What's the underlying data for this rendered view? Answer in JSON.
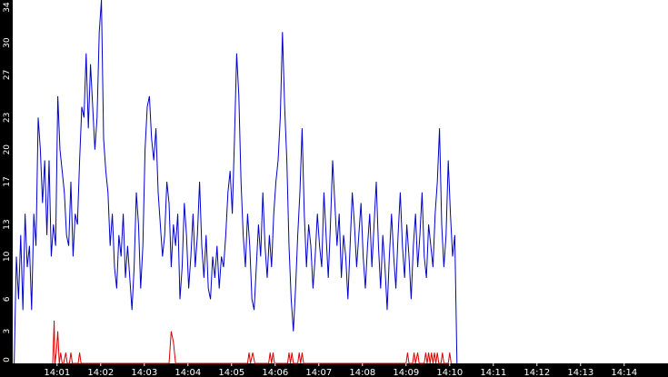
{
  "colors": {
    "background": "#ffffff",
    "axis_background": "#000000",
    "axis_text": "#ffffff",
    "series_blue": "#0000cc",
    "series_red": "#dd0000"
  },
  "chart_data": {
    "type": "line",
    "title": "",
    "xlabel": "",
    "ylabel": "",
    "grid": false,
    "legend": "none",
    "x_unit": "seconds",
    "x_range": [
      0,
      847
    ],
    "ylim": [
      0,
      34
    ],
    "y_ticks": [
      0,
      3,
      6,
      10,
      13,
      17,
      20,
      23,
      27,
      30,
      34
    ],
    "x_ticks": [
      {
        "label": "14:01",
        "t": 61
      },
      {
        "label": "14:02",
        "t": 121
      },
      {
        "label": "14:03",
        "t": 181
      },
      {
        "label": "14:04",
        "t": 241
      },
      {
        "label": "14:05",
        "t": 301
      },
      {
        "label": "14:06",
        "t": 361
      },
      {
        "label": "14:07",
        "t": 421
      },
      {
        "label": "14:08",
        "t": 481
      },
      {
        "label": "14:09",
        "t": 541
      },
      {
        "label": "14:10",
        "t": 601
      },
      {
        "label": "14:11",
        "t": 661
      },
      {
        "label": "14:12",
        "t": 721
      },
      {
        "label": "14:13",
        "t": 781
      },
      {
        "label": "14:14",
        "t": 841
      }
    ],
    "series": [
      {
        "color": "#0000cc",
        "points": [
          [
            2,
            0
          ],
          [
            5,
            10
          ],
          [
            8,
            6
          ],
          [
            11,
            12
          ],
          [
            14,
            5
          ],
          [
            17,
            14
          ],
          [
            20,
            9
          ],
          [
            23,
            11
          ],
          [
            26,
            5
          ],
          [
            29,
            14
          ],
          [
            32,
            11
          ],
          [
            35,
            23
          ],
          [
            38,
            20
          ],
          [
            41,
            15
          ],
          [
            44,
            19
          ],
          [
            47,
            12
          ],
          [
            50,
            19
          ],
          [
            53,
            10
          ],
          [
            56,
            13
          ],
          [
            59,
            11
          ],
          [
            62,
            25
          ],
          [
            65,
            20
          ],
          [
            68,
            18
          ],
          [
            71,
            16
          ],
          [
            74,
            12
          ],
          [
            77,
            11
          ],
          [
            80,
            17
          ],
          [
            83,
            10
          ],
          [
            86,
            14
          ],
          [
            89,
            13
          ],
          [
            92,
            19
          ],
          [
            95,
            24
          ],
          [
            98,
            23
          ],
          [
            101,
            29
          ],
          [
            104,
            22
          ],
          [
            107,
            28
          ],
          [
            110,
            24
          ],
          [
            113,
            20
          ],
          [
            116,
            23
          ],
          [
            119,
            31
          ],
          [
            122,
            34
          ],
          [
            125,
            21
          ],
          [
            128,
            18
          ],
          [
            131,
            16
          ],
          [
            134,
            11
          ],
          [
            137,
            14
          ],
          [
            140,
            9
          ],
          [
            143,
            7
          ],
          [
            146,
            12
          ],
          [
            149,
            10
          ],
          [
            152,
            14
          ],
          [
            155,
            8
          ],
          [
            158,
            11
          ],
          [
            161,
            8
          ],
          [
            164,
            5
          ],
          [
            167,
            9
          ],
          [
            170,
            16
          ],
          [
            173,
            13
          ],
          [
            176,
            7
          ],
          [
            179,
            11
          ],
          [
            182,
            20
          ],
          [
            185,
            24
          ],
          [
            188,
            25
          ],
          [
            191,
            21
          ],
          [
            194,
            19
          ],
          [
            197,
            22
          ],
          [
            200,
            16
          ],
          [
            203,
            13
          ],
          [
            206,
            10
          ],
          [
            209,
            12
          ],
          [
            212,
            17
          ],
          [
            215,
            15
          ],
          [
            218,
            9
          ],
          [
            221,
            13
          ],
          [
            224,
            11
          ],
          [
            227,
            14
          ],
          [
            230,
            6
          ],
          [
            233,
            9
          ],
          [
            236,
            15
          ],
          [
            239,
            12
          ],
          [
            242,
            7
          ],
          [
            245,
            10
          ],
          [
            248,
            14
          ],
          [
            251,
            9
          ],
          [
            254,
            12
          ],
          [
            257,
            17
          ],
          [
            260,
            11
          ],
          [
            263,
            8
          ],
          [
            266,
            12
          ],
          [
            269,
            7
          ],
          [
            272,
            6
          ],
          [
            275,
            10
          ],
          [
            278,
            8
          ],
          [
            281,
            11
          ],
          [
            284,
            7
          ],
          [
            287,
            10
          ],
          [
            290,
            9
          ],
          [
            293,
            12
          ],
          [
            296,
            16
          ],
          [
            299,
            18
          ],
          [
            302,
            14
          ],
          [
            305,
            21
          ],
          [
            308,
            29
          ],
          [
            311,
            25
          ],
          [
            314,
            17
          ],
          [
            317,
            12
          ],
          [
            320,
            9
          ],
          [
            323,
            14
          ],
          [
            326,
            11
          ],
          [
            329,
            6
          ],
          [
            332,
            5
          ],
          [
            335,
            9
          ],
          [
            338,
            13
          ],
          [
            341,
            10
          ],
          [
            344,
            16
          ],
          [
            347,
            11
          ],
          [
            350,
            8
          ],
          [
            353,
            12
          ],
          [
            356,
            9
          ],
          [
            359,
            14
          ],
          [
            362,
            17
          ],
          [
            365,
            19
          ],
          [
            368,
            23
          ],
          [
            371,
            31
          ],
          [
            374,
            24
          ],
          [
            377,
            19
          ],
          [
            380,
            11
          ],
          [
            383,
            6
          ],
          [
            386,
            3
          ],
          [
            389,
            7
          ],
          [
            392,
            12
          ],
          [
            395,
            16
          ],
          [
            398,
            22
          ],
          [
            401,
            14
          ],
          [
            404,
            9
          ],
          [
            407,
            13
          ],
          [
            410,
            11
          ],
          [
            413,
            7
          ],
          [
            416,
            10
          ],
          [
            419,
            14
          ],
          [
            422,
            11
          ],
          [
            425,
            9
          ],
          [
            428,
            16
          ],
          [
            431,
            12
          ],
          [
            434,
            8
          ],
          [
            437,
            13
          ],
          [
            440,
            19
          ],
          [
            443,
            15
          ],
          [
            446,
            11
          ],
          [
            449,
            14
          ],
          [
            452,
            8
          ],
          [
            455,
            12
          ],
          [
            458,
            10
          ],
          [
            461,
            6
          ],
          [
            464,
            11
          ],
          [
            467,
            16
          ],
          [
            470,
            13
          ],
          [
            473,
            9
          ],
          [
            476,
            12
          ],
          [
            479,
            15
          ],
          [
            482,
            10
          ],
          [
            485,
            7
          ],
          [
            488,
            11
          ],
          [
            491,
            14
          ],
          [
            494,
            9
          ],
          [
            497,
            13
          ],
          [
            500,
            17
          ],
          [
            503,
            11
          ],
          [
            506,
            7
          ],
          [
            509,
            12
          ],
          [
            512,
            9
          ],
          [
            515,
            5
          ],
          [
            518,
            10
          ],
          [
            521,
            14
          ],
          [
            524,
            10
          ],
          [
            527,
            7
          ],
          [
            530,
            12
          ],
          [
            533,
            16
          ],
          [
            536,
            11
          ],
          [
            539,
            8
          ],
          [
            542,
            13
          ],
          [
            545,
            10
          ],
          [
            548,
            6
          ],
          [
            551,
            11
          ],
          [
            554,
            14
          ],
          [
            557,
            9
          ],
          [
            560,
            12
          ],
          [
            563,
            16
          ],
          [
            566,
            10
          ],
          [
            569,
            8
          ],
          [
            572,
            13
          ],
          [
            575,
            11
          ],
          [
            578,
            9
          ],
          [
            581,
            14
          ],
          [
            584,
            17
          ],
          [
            587,
            22
          ],
          [
            590,
            13
          ],
          [
            593,
            9
          ],
          [
            596,
            12
          ],
          [
            599,
            19
          ],
          [
            602,
            14
          ],
          [
            605,
            10
          ],
          [
            608,
            12
          ],
          [
            611,
            0
          ]
        ]
      },
      {
        "color": "#dd0000",
        "points": [
          [
            55,
            0
          ],
          [
            57,
            4
          ],
          [
            58,
            0
          ],
          [
            60,
            1
          ],
          [
            62,
            3
          ],
          [
            64,
            0
          ],
          [
            66,
            1
          ],
          [
            68,
            0
          ],
          [
            70,
            0
          ],
          [
            73,
            1
          ],
          [
            75,
            0
          ],
          [
            78,
            0
          ],
          [
            80,
            1
          ],
          [
            82,
            0
          ],
          [
            90,
            0
          ],
          [
            92,
            1
          ],
          [
            94,
            0
          ],
          [
            210,
            0
          ],
          [
            215,
            0
          ],
          [
            218,
            3
          ],
          [
            221,
            2
          ],
          [
            224,
            0
          ],
          [
            323,
            0
          ],
          [
            325,
            1
          ],
          [
            327,
            0
          ],
          [
            330,
            1
          ],
          [
            333,
            0
          ],
          [
            352,
            0
          ],
          [
            354,
            1
          ],
          [
            356,
            0
          ],
          [
            358,
            1
          ],
          [
            360,
            0
          ],
          [
            378,
            0
          ],
          [
            380,
            1
          ],
          [
            382,
            0
          ],
          [
            384,
            1
          ],
          [
            386,
            0
          ],
          [
            392,
            0
          ],
          [
            394,
            1
          ],
          [
            396,
            0
          ],
          [
            398,
            1
          ],
          [
            400,
            0
          ],
          [
            541,
            0
          ],
          [
            543,
            1
          ],
          [
            545,
            0
          ],
          [
            550,
            0
          ],
          [
            552,
            1
          ],
          [
            554,
            0
          ],
          [
            557,
            1
          ],
          [
            559,
            0
          ],
          [
            566,
            0
          ],
          [
            568,
            1
          ],
          [
            570,
            0
          ],
          [
            572,
            1
          ],
          [
            574,
            0
          ],
          [
            576,
            1
          ],
          [
            578,
            0
          ],
          [
            580,
            1
          ],
          [
            582,
            0
          ],
          [
            584,
            1
          ],
          [
            586,
            0
          ],
          [
            589,
            0
          ],
          [
            591,
            1
          ],
          [
            593,
            0
          ],
          [
            599,
            0
          ],
          [
            601,
            1
          ],
          [
            603,
            0
          ]
        ]
      }
    ]
  }
}
